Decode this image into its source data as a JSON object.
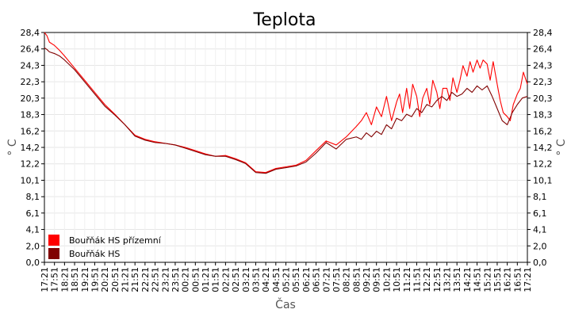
{
  "chart_data": {
    "type": "line",
    "title": "Teplota",
    "xlabel": "Čas",
    "ylabel": "° C",
    "ylim": [
      0,
      28.4
    ],
    "y_ticks": [
      "0,0",
      "2,0",
      "4,1",
      "6,1",
      "8,1",
      "10,1",
      "12,2",
      "14,2",
      "16,2",
      "18,3",
      "20,3",
      "22,3",
      "24,3",
      "26,4",
      "28,4"
    ],
    "y_tick_values": [
      0,
      2.03,
      4.06,
      6.09,
      8.11,
      10.14,
      12.17,
      14.2,
      16.23,
      18.26,
      20.29,
      22.31,
      24.34,
      26.37,
      28.4
    ],
    "x_ticks": [
      "17:21",
      "17:51",
      "18:21",
      "18:51",
      "19:21",
      "19:51",
      "20:21",
      "20:51",
      "21:21",
      "21:51",
      "22:21",
      "22:51",
      "23:21",
      "23:51",
      "00:21",
      "00:51",
      "01:21",
      "01:51",
      "02:21",
      "02:51",
      "03:21",
      "03:51",
      "04:21",
      "04:51",
      "05:21",
      "05:51",
      "06:21",
      "06:51",
      "07:21",
      "07:51",
      "08:21",
      "08:51",
      "09:21",
      "09:51",
      "10:21",
      "10:51",
      "11:21",
      "11:51",
      "12:21",
      "12:51",
      "13:21",
      "13:51",
      "14:21",
      "14:51",
      "15:21",
      "15:51",
      "16:21",
      "16:51",
      "17:21"
    ],
    "legend_position": "bottom-left",
    "grid": true,
    "series": [
      {
        "name": "Bouřňák HS přízemní",
        "color": "#ff0000",
        "x": [
          0,
          0.25,
          0.5,
          1,
          1.5,
          2,
          3,
          4,
          5,
          6,
          7,
          8,
          9,
          10,
          11,
          12,
          13,
          14,
          15,
          16,
          17,
          18,
          19,
          20,
          21,
          22,
          23,
          24,
          25,
          26,
          27,
          28,
          29,
          30,
          31,
          31.5,
          32,
          32.5,
          33,
          33.5,
          34,
          34.5,
          35,
          35.3,
          35.6,
          36,
          36.3,
          36.6,
          37,
          37.3,
          37.6,
          38,
          38.3,
          38.6,
          39,
          39.3,
          39.6,
          40,
          40.3,
          40.6,
          41,
          41.3,
          41.6,
          42,
          42.3,
          42.6,
          43,
          43.3,
          43.6,
          44,
          44.3,
          44.6,
          45,
          45.3,
          45.6,
          46,
          46.3,
          46.6,
          47,
          47.3,
          47.6,
          48
        ],
        "y": [
          28.4,
          28.0,
          27.2,
          26.8,
          26.2,
          25.5,
          24.0,
          22.5,
          21.0,
          19.5,
          18.3,
          17.0,
          15.7,
          15.2,
          14.9,
          14.7,
          14.5,
          14.2,
          13.8,
          13.4,
          13.1,
          13.2,
          12.8,
          12.3,
          11.2,
          11.1,
          11.6,
          11.8,
          12.0,
          12.6,
          13.8,
          15.0,
          14.5,
          15.5,
          16.8,
          17.5,
          18.5,
          17.0,
          19.2,
          18.0,
          20.5,
          17.5,
          19.8,
          20.8,
          18.5,
          21.5,
          19.0,
          22.0,
          20.5,
          18.0,
          20.3,
          21.5,
          19.5,
          22.5,
          21.0,
          19.0,
          21.5,
          21.5,
          20.0,
          22.8,
          21.0,
          22.5,
          24.3,
          23.0,
          24.8,
          23.5,
          25.0,
          24.0,
          25.0,
          24.5,
          22.5,
          24.8,
          22.0,
          20.0,
          18.5,
          18.0,
          17.5,
          19.5,
          20.8,
          21.5,
          23.5,
          22.0
        ]
      },
      {
        "name": "Bouřňák HS",
        "color": "#800000",
        "x": [
          0,
          0.25,
          0.5,
          1,
          1.5,
          2,
          3,
          4,
          5,
          6,
          7,
          8,
          9,
          10,
          11,
          12,
          13,
          14,
          15,
          16,
          17,
          18,
          19,
          20,
          21,
          22,
          23,
          24,
          25,
          26,
          27,
          28,
          29,
          30,
          31,
          31.5,
          32,
          32.5,
          33,
          33.5,
          34,
          34.5,
          35,
          35.5,
          36,
          36.5,
          37,
          37.5,
          38,
          38.5,
          39,
          39.5,
          40,
          40.5,
          41,
          41.5,
          42,
          42.5,
          43,
          43.5,
          44,
          44.5,
          45,
          45.5,
          46,
          46.5,
          47,
          47.5,
          48
        ],
        "y": [
          26.5,
          26.3,
          26.0,
          25.8,
          25.5,
          25.0,
          23.8,
          22.3,
          20.8,
          19.3,
          18.2,
          17.0,
          15.6,
          15.1,
          14.8,
          14.7,
          14.5,
          14.1,
          13.7,
          13.3,
          13.1,
          13.1,
          12.7,
          12.2,
          11.1,
          11.0,
          11.5,
          11.7,
          11.9,
          12.4,
          13.5,
          14.8,
          14.0,
          15.2,
          15.5,
          15.2,
          16.0,
          15.5,
          16.2,
          15.8,
          17.0,
          16.5,
          17.8,
          17.5,
          18.3,
          18.0,
          19.0,
          18.5,
          19.5,
          19.2,
          20.0,
          20.5,
          20.0,
          21.0,
          20.5,
          20.8,
          21.5,
          21.0,
          21.8,
          21.3,
          21.8,
          20.5,
          19.0,
          17.5,
          17.0,
          18.5,
          19.5,
          20.3,
          20.5
        ]
      }
    ]
  }
}
